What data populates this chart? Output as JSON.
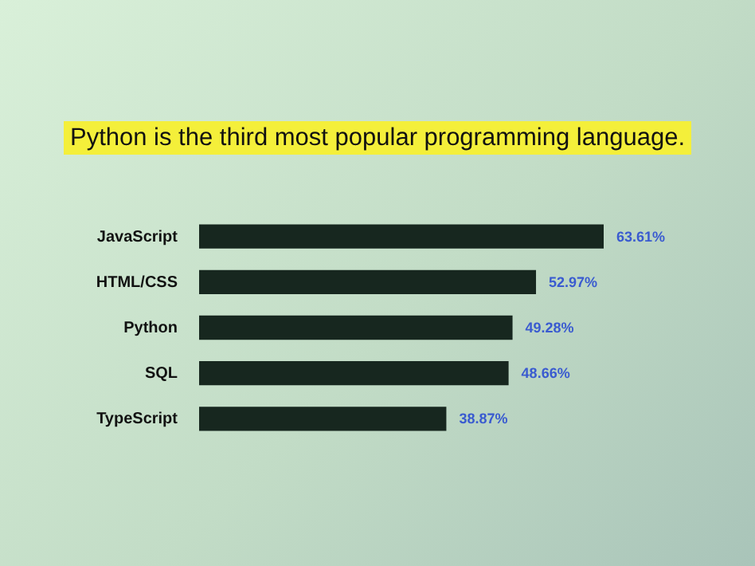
{
  "chart_data": {
    "type": "bar",
    "orientation": "horizontal",
    "title": "Python is the third most popular programming language.",
    "categories": [
      "JavaScript",
      "HTML/CSS",
      "Python",
      "SQL",
      "TypeScript"
    ],
    "values": [
      63.61,
      52.97,
      49.28,
      48.66,
      38.87
    ],
    "value_labels": [
      "63.61%",
      "52.97%",
      "49.28%",
      "48.66%",
      "38.87%"
    ],
    "color": "#17271f"
  }
}
